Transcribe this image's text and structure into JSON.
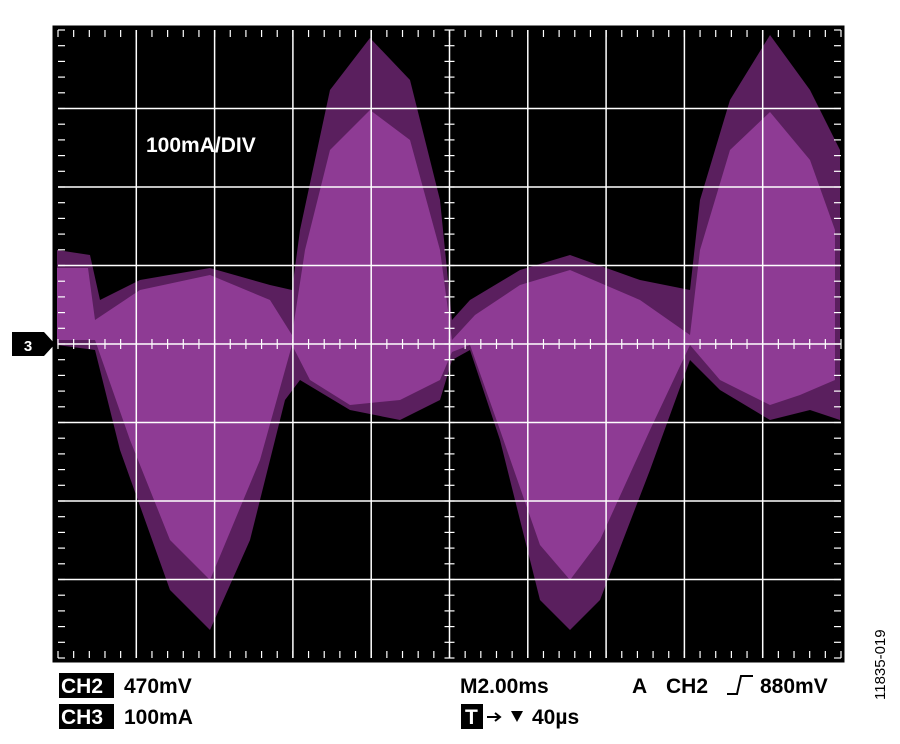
{
  "screen": {
    "scale_label": "100mA/DIV",
    "channel_marker": "3"
  },
  "status": {
    "ch2_label": "CH2",
    "ch2_scale": "470mV",
    "ch3_label": "CH3",
    "ch3_scale": "100mA",
    "timebase": "M2.00ms",
    "trigger_mode": "A",
    "trigger_source": "CH2",
    "trigger_level": "880mV",
    "trigger_marker": "T",
    "trigger_position": "40µs"
  },
  "figure_id": "11835-019"
}
